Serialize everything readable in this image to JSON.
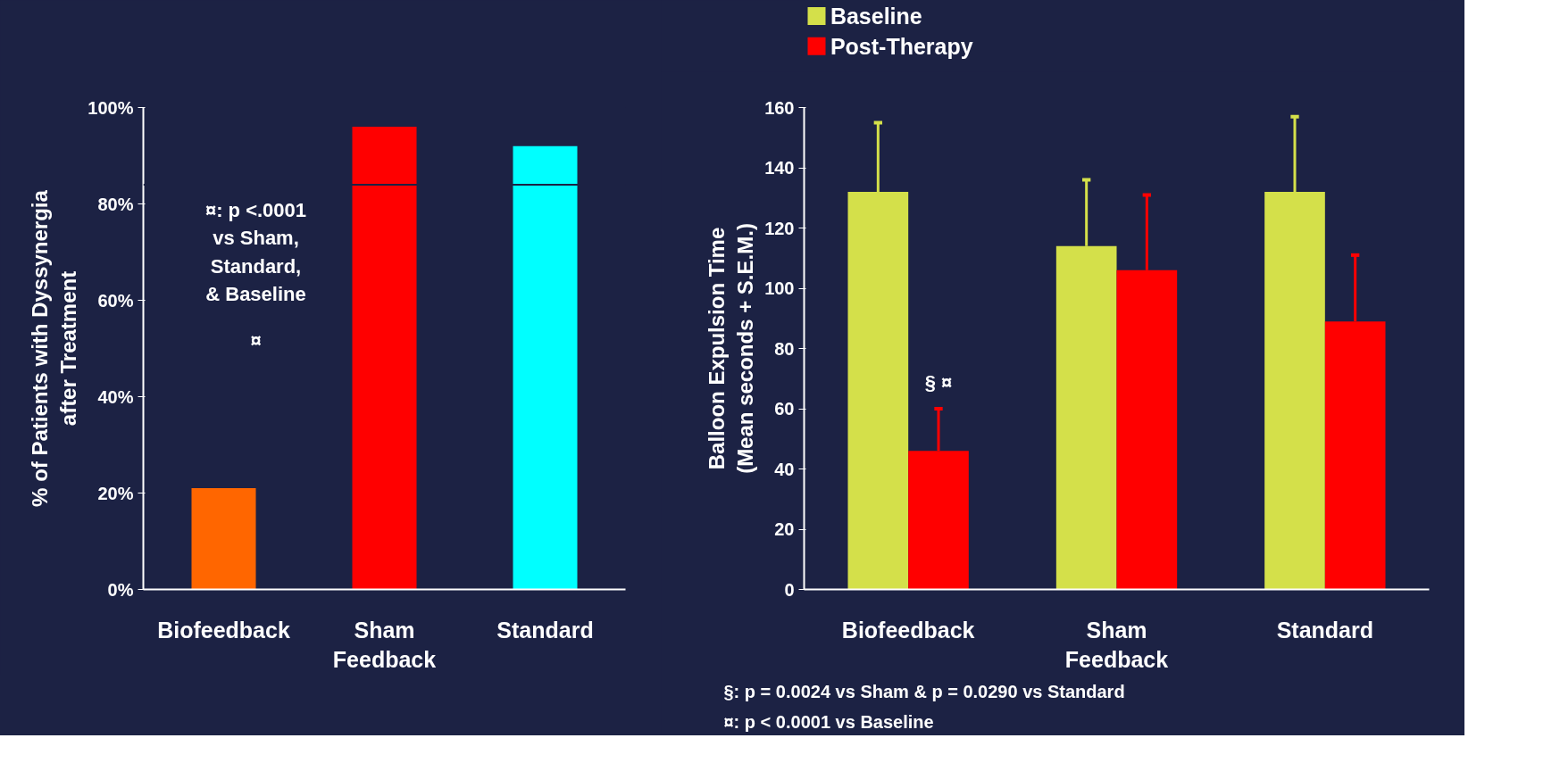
{
  "chart_data": [
    {
      "type": "bar",
      "categories": [
        "Biofeedback",
        "Sham\nFeedback",
        "Standard"
      ],
      "values": [
        21,
        96,
        92
      ],
      "colors": [
        "#ff6600",
        "#ff0000",
        "#00ffff"
      ],
      "ylabel": "% of Patients with Dyssynergia\nafter Treatment",
      "ylim": [
        0,
        100
      ],
      "yticks": [
        {
          "value": 0,
          "label": "0%"
        },
        {
          "value": 20,
          "label": "20%"
        },
        {
          "value": 40,
          "label": "40%"
        },
        {
          "value": 60,
          "label": "60%"
        },
        {
          "value": 80,
          "label": "80%"
        },
        {
          "value": 100,
          "label": "100%"
        }
      ],
      "ref_lines": [
        {
          "axis": "y",
          "value": 84,
          "color": "#1c2244"
        }
      ],
      "annotations": [
        "¤: p <.0001\nvs Sham,\nStandard,\n& Baseline",
        "¤"
      ]
    },
    {
      "type": "bar",
      "categories": [
        "Biofeedback",
        "Sham\nFeedback",
        "Standard"
      ],
      "series": [
        {
          "name": "Baseline",
          "color": "#d4e04a",
          "values": [
            132,
            114,
            132
          ],
          "errors": [
            [
              132,
              155
            ],
            [
              114,
              136
            ],
            [
              132,
              157
            ]
          ]
        },
        {
          "name": "Post-Therapy",
          "color": "#ff0000",
          "values": [
            46,
            106,
            89
          ],
          "errors": [
            [
              46,
              60
            ],
            [
              106,
              131
            ],
            [
              89,
              111
            ]
          ]
        }
      ],
      "ylabel": "Balloon Expulsion Time\n(Mean seconds + S.E.M.)",
      "ylim": [
        0,
        160
      ],
      "yticks": [
        0,
        20,
        40,
        60,
        80,
        100,
        120,
        140,
        160
      ],
      "legend": "top left",
      "annotations": [
        {
          "text": "§ ¤",
          "x": "Biofeedback",
          "y": 65
        },
        "§: p = 0.0024 vs Sham  & p = 0.0290 vs Standard",
        "¤:  p < 0.0001 vs Baseline"
      ]
    }
  ]
}
